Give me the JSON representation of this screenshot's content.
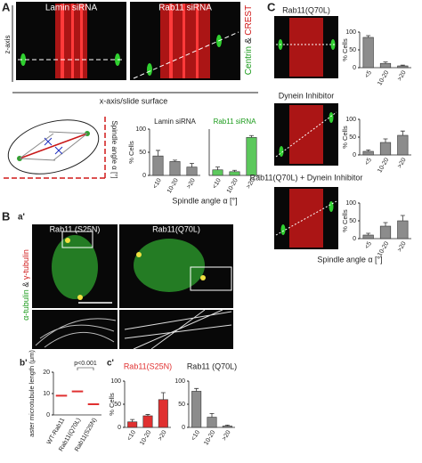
{
  "panels": {
    "A": "A",
    "B": "B",
    "C": "C",
    "a": "a'",
    "b": "b'",
    "c": "c'"
  },
  "panel_A": {
    "image_left": "Lamin siRNA",
    "image_right": "Rab11 siRNA",
    "stain_1": "Centrin",
    "stain_and": "&",
    "stain_2": "CREST",
    "z_axis": "z-axis",
    "x_axis": "x-axis/slide surface",
    "angle_label": "Spindle angle α [°]"
  },
  "panel_B": {
    "image_left": "Rab11 (S25N)",
    "image_right": "Rab11(Q70L)",
    "stain_1": "α-tubulin",
    "stain_and": "&",
    "stain_2": "γ-tubulin"
  },
  "chart_data": [
    {
      "type": "bar",
      "ylabel": "% Cells",
      "xlabel": "Spindle angle α [°]",
      "categories": [
        "<10",
        "10-20",
        ">20"
      ],
      "series": [
        {
          "name": "Lamin siRNA",
          "color": "#8c8c8c",
          "values": [
            42,
            30,
            18
          ],
          "errors": [
            12,
            3,
            8
          ]
        },
        {
          "name": "Rab11 siRNA",
          "color": "#5cc85c",
          "values": [
            12,
            8,
            82
          ],
          "errors": [
            6,
            3,
            4
          ]
        }
      ],
      "ylim": [
        0,
        100
      ],
      "yticks": [
        0,
        50,
        100
      ]
    },
    {
      "type": "strip",
      "ylabel": "aster microtubule length (μm)",
      "categories": [
        "WT-Rab11",
        "Rab11(Q70L)",
        "Rab11(S25N)"
      ],
      "color": "#e03030",
      "values": [
        9,
        11,
        5
      ],
      "annotation": "p<0.001",
      "ylim": [
        0,
        20
      ],
      "yticks": [
        0,
        10,
        20
      ]
    },
    {
      "type": "bar",
      "title": "Rab11(S25N)",
      "title_color": "#e03030",
      "ylabel": "% Cells",
      "categories": [
        "<10",
        "10-20",
        ">20"
      ],
      "series": [
        {
          "color": "#e03030",
          "values": [
            12,
            25,
            60
          ],
          "errors": [
            5,
            3,
            15
          ]
        }
      ],
      "ylim": [
        0,
        100
      ],
      "yticks": [
        0,
        50,
        100
      ]
    },
    {
      "type": "bar",
      "title": "Rab11 (Q70L)",
      "title_color": "#222222",
      "categories": [
        "<10",
        "10-20",
        ">20"
      ],
      "series": [
        {
          "color": "#8c8c8c",
          "values": [
            78,
            22,
            3
          ],
          "errors": [
            6,
            8,
            2
          ]
        }
      ],
      "ylim": [
        0,
        100
      ],
      "yticks": [
        0,
        50,
        100
      ]
    },
    {
      "type": "bar",
      "title": "Rab11(Q70L)",
      "title_color": "#222222",
      "ylabel": "% Cells",
      "categories": [
        "<5",
        "10-20",
        ">20"
      ],
      "series": [
        {
          "color": "#8c8c8c",
          "values": [
            85,
            12,
            5
          ],
          "errors": [
            5,
            4,
            2
          ]
        }
      ],
      "ylim": [
        0,
        100
      ],
      "yticks": [
        0,
        50,
        100
      ]
    },
    {
      "type": "bar",
      "title": "Dynein Inhibitor",
      "title_color": "#222222",
      "ylabel": "% Cells",
      "categories": [
        "<5",
        "10-20",
        ">20"
      ],
      "series": [
        {
          "color": "#8c8c8c",
          "values": [
            10,
            35,
            55
          ],
          "errors": [
            4,
            10,
            12
          ]
        }
      ],
      "ylim": [
        0,
        100
      ],
      "yticks": [
        0,
        50,
        100
      ]
    },
    {
      "type": "bar",
      "title": "Rab11(Q70L) + Dynein Inhibitor",
      "title_color": "#222222",
      "ylabel": "% Cells",
      "xlabel": "Spindle angle α [°]",
      "categories": [
        "<5",
        "10-20",
        ">20"
      ],
      "series": [
        {
          "color": "#8c8c8c",
          "values": [
            10,
            35,
            50
          ],
          "errors": [
            5,
            10,
            15
          ]
        }
      ],
      "ylim": [
        0,
        100
      ],
      "yticks": [
        0,
        50,
        100
      ]
    }
  ]
}
